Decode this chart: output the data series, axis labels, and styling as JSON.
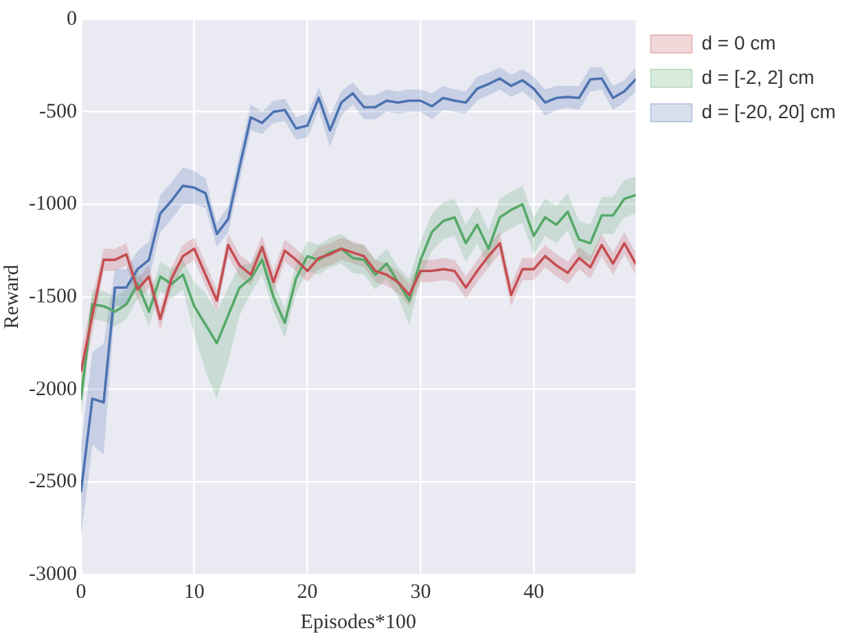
{
  "chart_data": {
    "type": "line",
    "xlabel": "Episodes*100",
    "ylabel": "Reward",
    "x": [
      0,
      1,
      2,
      3,
      4,
      5,
      6,
      7,
      8,
      9,
      10,
      11,
      12,
      13,
      14,
      15,
      16,
      17,
      18,
      19,
      20,
      21,
      22,
      23,
      24,
      25,
      26,
      27,
      28,
      29,
      30,
      31,
      32,
      33,
      34,
      35,
      36,
      37,
      38,
      39,
      40,
      41,
      42,
      43,
      44,
      45,
      46,
      47,
      48,
      49
    ],
    "series": [
      {
        "name": "d = 0 cm",
        "color": "#c44e52",
        "values": [
          -1900,
          -1600,
          -1300,
          -1300,
          -1270,
          -1460,
          -1390,
          -1620,
          -1400,
          -1280,
          -1240,
          -1380,
          -1520,
          -1220,
          -1330,
          -1380,
          -1230,
          -1420,
          -1250,
          -1300,
          -1360,
          -1290,
          -1270,
          -1240,
          -1260,
          -1280,
          -1360,
          -1380,
          -1420,
          -1490,
          -1360,
          -1360,
          -1350,
          -1360,
          -1450,
          -1360,
          -1280,
          -1210,
          -1490,
          -1350,
          -1350,
          -1280,
          -1330,
          -1370,
          -1290,
          -1340,
          -1220,
          -1320,
          -1210,
          -1320
        ],
        "lower": [
          -2000,
          -1700,
          -1360,
          -1360,
          -1330,
          -1520,
          -1450,
          -1680,
          -1460,
          -1340,
          -1300,
          -1440,
          -1580,
          -1280,
          -1390,
          -1440,
          -1290,
          -1480,
          -1310,
          -1360,
          -1420,
          -1350,
          -1330,
          -1300,
          -1320,
          -1340,
          -1420,
          -1440,
          -1480,
          -1550,
          -1420,
          -1420,
          -1410,
          -1420,
          -1510,
          -1420,
          -1340,
          -1270,
          -1550,
          -1410,
          -1410,
          -1340,
          -1390,
          -1430,
          -1350,
          -1400,
          -1280,
          -1380,
          -1270,
          -1380
        ],
        "upper": [
          -1800,
          -1500,
          -1240,
          -1240,
          -1210,
          -1400,
          -1330,
          -1560,
          -1340,
          -1220,
          -1180,
          -1320,
          -1460,
          -1160,
          -1270,
          -1320,
          -1170,
          -1360,
          -1190,
          -1240,
          -1300,
          -1230,
          -1210,
          -1180,
          -1200,
          -1220,
          -1300,
          -1320,
          -1360,
          -1430,
          -1300,
          -1300,
          -1290,
          -1300,
          -1390,
          -1300,
          -1220,
          -1150,
          -1430,
          -1290,
          -1290,
          -1220,
          -1270,
          -1310,
          -1230,
          -1280,
          -1160,
          -1260,
          -1150,
          -1260
        ]
      },
      {
        "name": "d = [-2, 2] cm",
        "color": "#55a868",
        "values": [
          -2050,
          -1540,
          -1550,
          -1580,
          -1540,
          -1430,
          -1580,
          -1390,
          -1430,
          -1380,
          -1550,
          -1650,
          -1750,
          -1600,
          -1450,
          -1400,
          -1300,
          -1500,
          -1640,
          -1400,
          -1280,
          -1300,
          -1260,
          -1240,
          -1290,
          -1300,
          -1380,
          -1320,
          -1420,
          -1520,
          -1300,
          -1150,
          -1090,
          -1070,
          -1210,
          -1110,
          -1240,
          -1070,
          -1030,
          -1000,
          -1170,
          -1070,
          -1110,
          -1040,
          -1190,
          -1210,
          -1060,
          -1060,
          -970,
          -950
        ],
        "lower": [
          -2150,
          -1620,
          -1630,
          -1660,
          -1620,
          -1510,
          -1660,
          -1470,
          -1510,
          -1460,
          -1700,
          -1900,
          -2050,
          -1850,
          -1600,
          -1480,
          -1380,
          -1580,
          -1720,
          -1480,
          -1360,
          -1380,
          -1340,
          -1320,
          -1370,
          -1380,
          -1460,
          -1400,
          -1500,
          -1650,
          -1400,
          -1250,
          -1190,
          -1170,
          -1310,
          -1210,
          -1340,
          -1170,
          -1130,
          -1100,
          -1270,
          -1170,
          -1210,
          -1140,
          -1290,
          -1310,
          -1160,
          -1160,
          -1070,
          -1050
        ],
        "upper": [
          -1950,
          -1460,
          -1470,
          -1500,
          -1460,
          -1350,
          -1500,
          -1310,
          -1350,
          -1300,
          -1420,
          -1480,
          -1580,
          -1450,
          -1330,
          -1320,
          -1220,
          -1420,
          -1560,
          -1320,
          -1200,
          -1220,
          -1180,
          -1160,
          -1210,
          -1220,
          -1300,
          -1240,
          -1340,
          -1400,
          -1200,
          -1050,
          -990,
          -970,
          -1110,
          -1010,
          -1140,
          -970,
          -930,
          -900,
          -1070,
          -970,
          -1010,
          -940,
          -1090,
          -1110,
          -960,
          -960,
          -870,
          -850
        ]
      },
      {
        "name": "d = [-20, 20] cm",
        "color": "#4c72b0",
        "values": [
          -2550,
          -2050,
          -2070,
          -1450,
          -1450,
          -1350,
          -1300,
          -1050,
          -980,
          -900,
          -910,
          -940,
          -1160,
          -1080,
          -800,
          -530,
          -560,
          -500,
          -490,
          -590,
          -575,
          -425,
          -600,
          -450,
          -400,
          -475,
          -475,
          -440,
          -450,
          -440,
          -440,
          -470,
          -425,
          -440,
          -450,
          -375,
          -350,
          -320,
          -360,
          -330,
          -375,
          -450,
          -425,
          -420,
          -425,
          -325,
          -320,
          -425,
          -390,
          -325
        ],
        "lower": [
          -2800,
          -2300,
          -2350,
          -1550,
          -1550,
          -1450,
          -1400,
          -1150,
          -1080,
          -1000,
          -1000,
          -1020,
          -1230,
          -1150,
          -880,
          -600,
          -620,
          -560,
          -550,
          -650,
          -640,
          -490,
          -690,
          -520,
          -460,
          -540,
          -540,
          -500,
          -510,
          -500,
          -500,
          -540,
          -490,
          -500,
          -510,
          -440,
          -410,
          -380,
          -420,
          -390,
          -440,
          -520,
          -490,
          -480,
          -490,
          -390,
          -380,
          -490,
          -450,
          -390
        ],
        "upper": [
          -2300,
          -1800,
          -1750,
          -1350,
          -1350,
          -1250,
          -1200,
          -950,
          -880,
          -800,
          -820,
          -860,
          -1100,
          -1010,
          -720,
          -460,
          -500,
          -440,
          -430,
          -530,
          -510,
          -370,
          -520,
          -390,
          -340,
          -410,
          -410,
          -380,
          -390,
          -380,
          -380,
          -400,
          -360,
          -380,
          -390,
          -310,
          -290,
          -260,
          -300,
          -270,
          -310,
          -380,
          -360,
          -360,
          -360,
          -260,
          -260,
          -360,
          -330,
          -260
        ]
      }
    ],
    "xlim": [
      0,
      49
    ],
    "xticks": [
      0,
      10,
      20,
      30,
      40
    ],
    "ylim": [
      -3000,
      0
    ],
    "yticks": [
      -3000,
      -2500,
      -2000,
      -1500,
      -1000,
      -500,
      0
    ],
    "grid": true,
    "legend": "top right"
  }
}
